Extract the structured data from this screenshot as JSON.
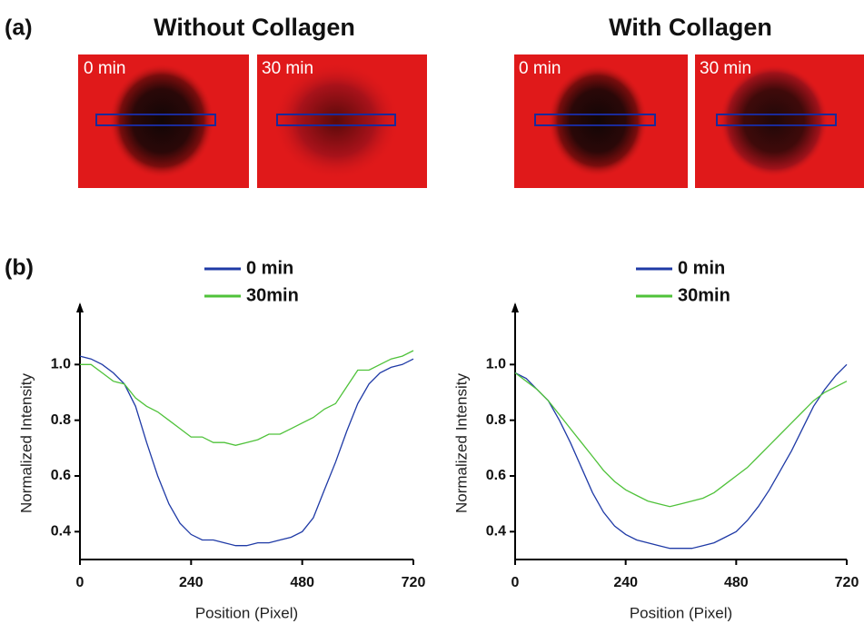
{
  "panel_a": {
    "label": "(a)",
    "columns": [
      {
        "title": "Without Collagen",
        "images": [
          {
            "label": "0 min"
          },
          {
            "label": "30 min"
          }
        ]
      },
      {
        "title": "With Collagen",
        "images": [
          {
            "label": "0 min"
          },
          {
            "label": "30 min"
          }
        ]
      }
    ]
  },
  "panel_b": {
    "label": "(b)"
  },
  "chart_data": [
    {
      "type": "line",
      "xlabel": "Position (Pixel)",
      "ylabel": "Normalized Intensity",
      "xlim": [
        0,
        720
      ],
      "xticks": [
        0,
        240,
        480,
        720
      ],
      "ylim": [
        0.3,
        1.2
      ],
      "yticks": [
        0.4,
        0.6,
        0.8,
        {
          "value": 1,
          "label": "1.0"
        }
      ],
      "x": [
        0,
        24,
        48,
        72,
        96,
        120,
        144,
        168,
        192,
        216,
        240,
        264,
        288,
        312,
        336,
        360,
        384,
        408,
        432,
        456,
        480,
        504,
        528,
        552,
        576,
        600,
        624,
        648,
        672,
        696,
        720
      ],
      "series": [
        {
          "name": "0 min",
          "color": "#1f3aa6",
          "values": [
            1.03,
            1.02,
            1.0,
            0.97,
            0.93,
            0.85,
            0.72,
            0.6,
            0.5,
            0.43,
            0.39,
            0.37,
            0.37,
            0.36,
            0.35,
            0.35,
            0.36,
            0.36,
            0.37,
            0.38,
            0.4,
            0.45,
            0.55,
            0.65,
            0.76,
            0.86,
            0.93,
            0.97,
            0.99,
            1.0,
            1.02
          ]
        },
        {
          "name": "30min",
          "color": "#4fc23a",
          "values": [
            1.0,
            1.0,
            0.97,
            0.94,
            0.93,
            0.88,
            0.85,
            0.83,
            0.8,
            0.77,
            0.74,
            0.74,
            0.72,
            0.72,
            0.71,
            0.72,
            0.73,
            0.75,
            0.75,
            0.77,
            0.79,
            0.81,
            0.84,
            0.86,
            0.92,
            0.98,
            0.98,
            1.0,
            1.02,
            1.03,
            1.05
          ]
        }
      ]
    },
    {
      "type": "line",
      "xlabel": "Position (Pixel)",
      "ylabel": "Normalized Intensity",
      "xlim": [
        0,
        720
      ],
      "xticks": [
        0,
        240,
        480,
        720
      ],
      "ylim": [
        0.3,
        1.2
      ],
      "yticks": [
        0.4,
        0.6,
        0.8,
        {
          "value": 1,
          "label": "1.0"
        }
      ],
      "x": [
        0,
        24,
        48,
        72,
        96,
        120,
        144,
        168,
        192,
        216,
        240,
        264,
        288,
        312,
        336,
        360,
        384,
        408,
        432,
        456,
        480,
        504,
        528,
        552,
        576,
        600,
        624,
        648,
        672,
        696,
        720
      ],
      "series": [
        {
          "name": "0 min",
          "color": "#1f3aa6",
          "values": [
            0.97,
            0.95,
            0.91,
            0.87,
            0.8,
            0.72,
            0.63,
            0.54,
            0.47,
            0.42,
            0.39,
            0.37,
            0.36,
            0.35,
            0.34,
            0.34,
            0.34,
            0.35,
            0.36,
            0.38,
            0.4,
            0.44,
            0.49,
            0.55,
            0.62,
            0.69,
            0.77,
            0.85,
            0.91,
            0.96,
            1.0
          ]
        },
        {
          "name": "30min",
          "color": "#4fc23a",
          "values": [
            0.97,
            0.94,
            0.91,
            0.87,
            0.82,
            0.77,
            0.72,
            0.67,
            0.62,
            0.58,
            0.55,
            0.53,
            0.51,
            0.5,
            0.49,
            0.5,
            0.51,
            0.52,
            0.54,
            0.57,
            0.6,
            0.63,
            0.67,
            0.71,
            0.75,
            0.79,
            0.83,
            0.87,
            0.9,
            0.92,
            0.94
          ]
        }
      ]
    }
  ]
}
